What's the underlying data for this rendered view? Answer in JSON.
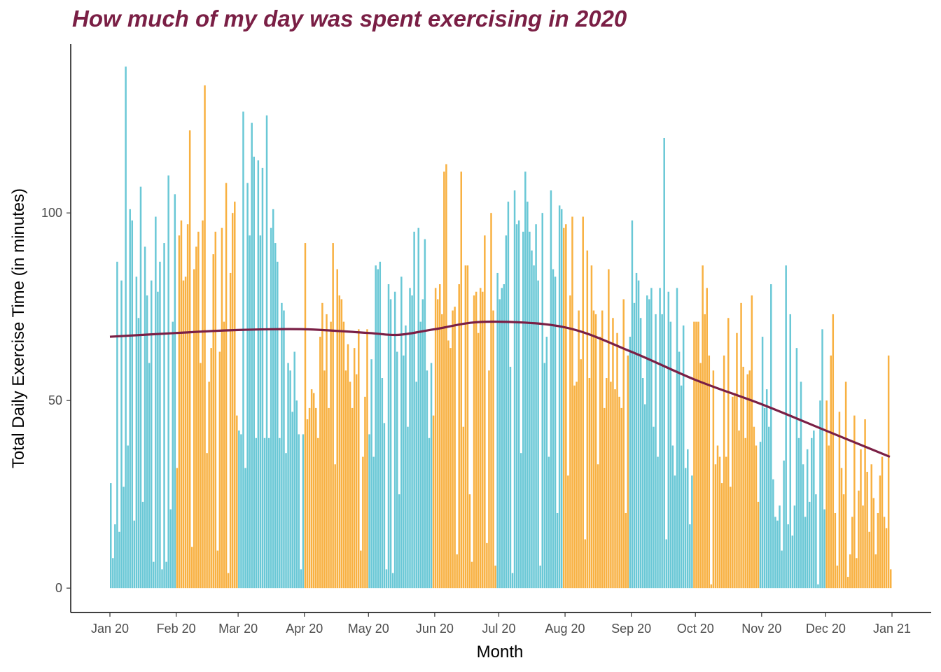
{
  "chart_data": {
    "type": "bar",
    "title": "How much of my day was spent exercising in 2020",
    "xlabel": "Month",
    "ylabel": "Total Daily Exercise Time (in minutes)",
    "x_ticks": [
      "Jan 20",
      "Feb 20",
      "Mar 20",
      "Apr 20",
      "May 20",
      "Jun 20",
      "Jul 20",
      "Aug 20",
      "Sep 20",
      "Oct 20",
      "Nov 20",
      "Dec 20",
      "Jan 21"
    ],
    "y_ticks": [
      0,
      50,
      100
    ],
    "ylim": [
      -6.5,
      145
    ],
    "grid": false,
    "legend": "none",
    "colors": {
      "teal": "#6ac8d6",
      "orange": "#f8b142",
      "trend": "#7a1f45",
      "title": "#7a1f45"
    },
    "month_colors": [
      "teal",
      "orange",
      "teal",
      "orange",
      "teal",
      "orange",
      "teal",
      "orange",
      "teal",
      "orange",
      "teal",
      "orange"
    ],
    "months": [
      {
        "month": "Jan",
        "values": [
          28,
          8,
          17,
          87,
          15,
          82,
          27,
          139,
          38,
          101,
          98,
          18,
          83,
          72,
          107,
          23,
          91,
          78,
          60,
          82,
          7,
          99,
          79,
          87,
          5,
          92,
          7,
          110,
          21,
          71,
          105
        ]
      },
      {
        "month": "Feb",
        "values": [
          32,
          94,
          98,
          82,
          83,
          97,
          122,
          11,
          85,
          91,
          95,
          60,
          98,
          134,
          36,
          55,
          64,
          89,
          95,
          10,
          63,
          96,
          71,
          108,
          4,
          84,
          100,
          103,
          46
        ]
      },
      {
        "month": "Mar",
        "values": [
          42,
          41,
          127,
          32,
          108,
          94,
          124,
          115,
          40,
          114,
          94,
          112,
          40,
          126,
          40,
          96,
          101,
          92,
          87,
          40,
          76,
          74,
          36,
          60,
          58,
          47,
          63,
          50,
          41,
          5,
          41
        ]
      },
      {
        "month": "Apr",
        "values": [
          92,
          45,
          48,
          53,
          52,
          48,
          40,
          67,
          76,
          58,
          73,
          48,
          71,
          92,
          33,
          85,
          78,
          77,
          71,
          58,
          65,
          55,
          48,
          64,
          57,
          69,
          10,
          35,
          51,
          69
        ]
      },
      {
        "month": "May",
        "values": [
          41,
          61,
          35,
          86,
          85,
          87,
          56,
          44,
          5,
          81,
          77,
          4,
          79,
          63,
          25,
          83,
          62,
          70,
          43,
          80,
          78,
          95,
          55,
          96,
          71,
          77,
          93,
          58,
          40,
          60
        ]
      },
      {
        "month": "Jun",
        "values": [
          46,
          80,
          77,
          81,
          73,
          111,
          113,
          66,
          64,
          74,
          75,
          9,
          81,
          111,
          43,
          86,
          86,
          25,
          7,
          78,
          79,
          68,
          80,
          79,
          94,
          12,
          58,
          100,
          74,
          6
        ]
      },
      {
        "month": "Jul",
        "values": [
          84,
          77,
          80,
          81,
          94,
          103,
          59,
          4,
          106,
          97,
          98,
          36,
          95,
          111,
          103,
          95,
          90,
          86,
          97,
          82,
          6,
          100,
          60,
          67,
          35,
          106,
          85,
          83,
          20,
          102,
          101
        ]
      },
      {
        "month": "Aug",
        "values": [
          96,
          97,
          30,
          78,
          99,
          54,
          55,
          74,
          61,
          99,
          13,
          90,
          56,
          86,
          74,
          73,
          33,
          67,
          74,
          48,
          56,
          85,
          55,
          72,
          53,
          68,
          51,
          48,
          77,
          20,
          62
        ]
      },
      {
        "month": "Sep",
        "values": [
          67,
          98,
          76,
          84,
          82,
          72,
          56,
          49,
          78,
          77,
          80,
          43,
          73,
          35,
          80,
          73,
          120,
          13,
          79,
          71,
          38,
          30,
          80,
          63,
          54,
          70,
          32,
          37,
          17,
          30
        ]
      },
      {
        "month": "Oct",
        "values": [
          71,
          71,
          71,
          60,
          86,
          73,
          80,
          62,
          1,
          58,
          33,
          38,
          35,
          28,
          62,
          35,
          72,
          27,
          51,
          52,
          68,
          42,
          76,
          59,
          40,
          57,
          58,
          78,
          43,
          38,
          23
        ]
      },
      {
        "month": "Nov",
        "values": [
          39,
          67,
          48,
          53,
          43,
          81,
          29,
          19,
          18,
          22,
          10,
          34,
          86,
          17,
          73,
          14,
          22,
          64,
          40,
          55,
          33,
          19,
          37,
          23,
          40,
          42,
          25,
          1,
          50,
          69,
          21
        ]
      },
      {
        "month": "Dec",
        "values": [
          50,
          38,
          62,
          73,
          20,
          6,
          47,
          32,
          25,
          55,
          3,
          9,
          19,
          46,
          8,
          26,
          37,
          22,
          45,
          31,
          15,
          33,
          24,
          9,
          20,
          30,
          35,
          19,
          16,
          62,
          5
        ]
      }
    ],
    "trend": {
      "x": [
        "2020-01-01",
        "2020-02-01",
        "2020-03-01",
        "2020-04-01",
        "2020-05-01",
        "2020-05-15",
        "2020-06-01",
        "2020-06-25",
        "2020-08-01",
        "2020-09-01",
        "2020-10-01",
        "2020-11-01",
        "2020-12-01",
        "2020-12-31"
      ],
      "y": [
        67,
        68,
        68.8,
        69,
        68,
        67.5,
        69,
        71,
        69.5,
        63,
        55.5,
        49,
        42,
        35
      ]
    }
  }
}
